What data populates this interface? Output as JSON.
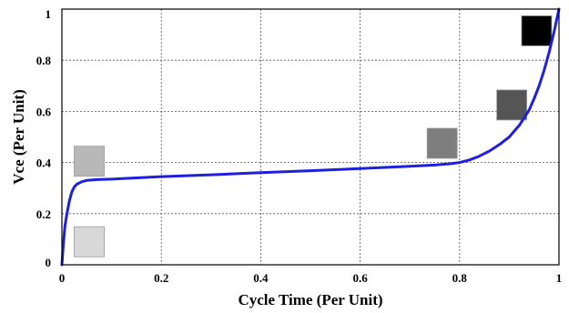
{
  "chart_data": {
    "type": "line",
    "title": "",
    "xlabel": "Cycle Time (Per Unit)",
    "ylabel": "Vce (Per Unit)",
    "xlim": [
      0,
      1
    ],
    "ylim": [
      0,
      1
    ],
    "x_ticks": [
      "0",
      "0.2",
      "0.4",
      "0.6",
      "0.8",
      "1"
    ],
    "y_ticks": [
      "0",
      "0.2",
      "0.4",
      "0.6",
      "0.8",
      "1"
    ],
    "grid": true,
    "grid_style": "dashed",
    "series": [
      {
        "color": "#1f1fe0",
        "x": [
          0,
          0.003,
          0.006,
          0.01,
          0.015,
          0.02,
          0.025,
          0.03,
          0.04,
          0.05,
          0.07,
          0.1,
          0.15,
          0.2,
          0.3,
          0.4,
          0.5,
          0.6,
          0.7,
          0.75,
          0.78,
          0.8,
          0.82,
          0.84,
          0.86,
          0.88,
          0.9,
          0.92,
          0.94,
          0.95,
          0.96,
          0.97,
          0.98,
          0.99,
          1.0
        ],
        "y": [
          0,
          0.08,
          0.15,
          0.2,
          0.25,
          0.285,
          0.305,
          0.315,
          0.325,
          0.33,
          0.333,
          0.335,
          0.34,
          0.345,
          0.352,
          0.36,
          0.368,
          0.376,
          0.385,
          0.39,
          0.395,
          0.4,
          0.41,
          0.425,
          0.445,
          0.47,
          0.5,
          0.545,
          0.605,
          0.65,
          0.7,
          0.76,
          0.83,
          0.91,
          1.0
        ]
      }
    ],
    "markers": [
      {
        "x": 0.055,
        "y": 0.09,
        "color": "#d8d8d8"
      },
      {
        "x": 0.055,
        "y": 0.405,
        "color": "#b8b8b8"
      },
      {
        "x": 0.765,
        "y": 0.475,
        "color": "#7e7e7e"
      },
      {
        "x": 0.905,
        "y": 0.625,
        "color": "#555555"
      },
      {
        "x": 0.955,
        "y": 0.915,
        "color": "#000000"
      }
    ]
  }
}
